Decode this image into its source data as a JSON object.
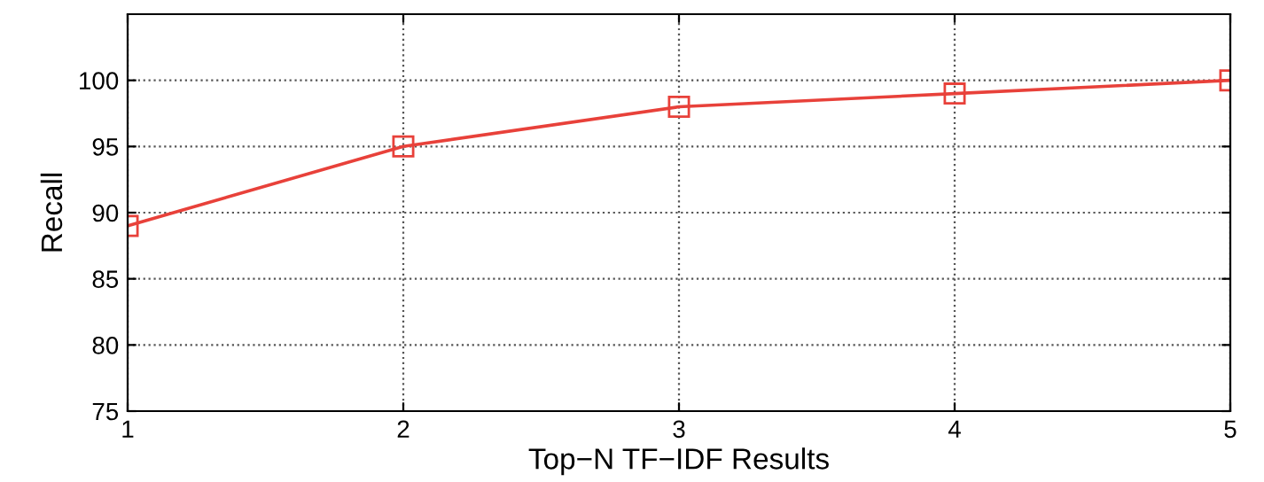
{
  "chart_data": {
    "type": "line",
    "xlabel": "Top−N TF−IDF Results",
    "ylabel": "Recall",
    "x": [
      1,
      2,
      3,
      4,
      5
    ],
    "series": [
      {
        "color": "#e8413a",
        "values": [
          89,
          95,
          98,
          99,
          100
        ]
      }
    ],
    "xlim": [
      1,
      5
    ],
    "xticks": [
      1,
      2,
      3,
      4,
      5
    ],
    "ylim": [
      75,
      105
    ],
    "yticks": [
      75,
      80,
      85,
      90,
      95,
      100
    ],
    "grid": true,
    "marker": "square",
    "line_style": "solid"
  }
}
